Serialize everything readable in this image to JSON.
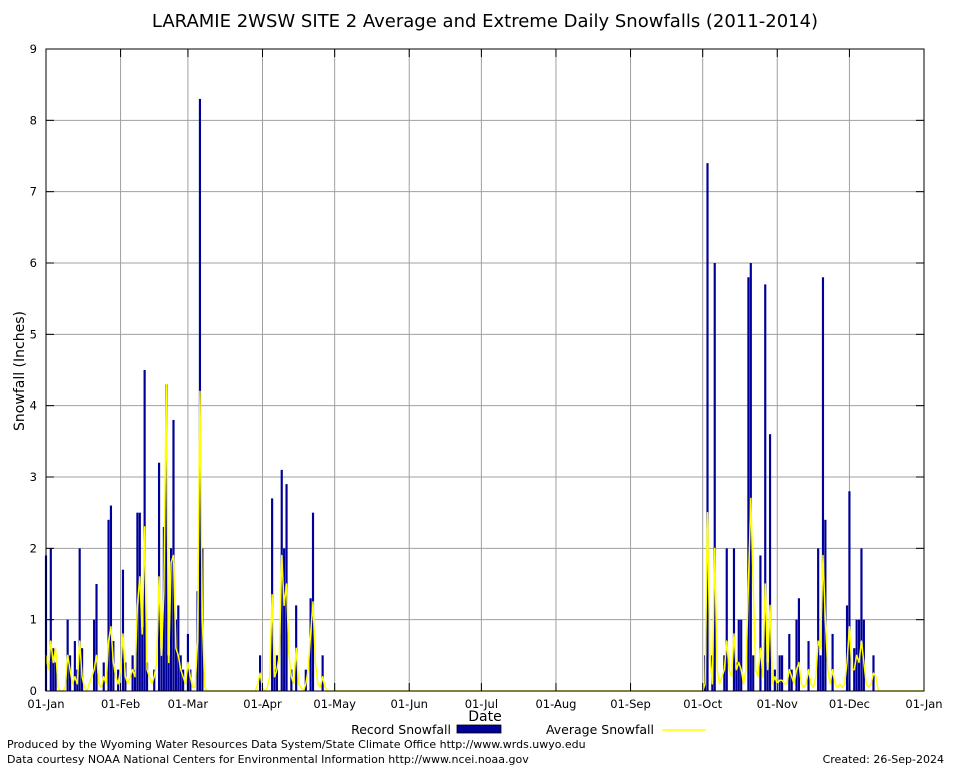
{
  "chart_data": {
    "type": "bar",
    "title": "LARAMIE 2WSW SITE 2 Average and Extreme Daily Snowfalls (2011-2014)",
    "xlabel": "Date",
    "ylabel": "Snowfall (Inches)",
    "ylim": [
      0,
      9
    ],
    "y_ticks": [
      "0",
      "1",
      "2",
      "3",
      "4",
      "5",
      "6",
      "7",
      "8",
      "9"
    ],
    "x_tick_labels": [
      "01-Jan",
      "01-Feb",
      "01-Mar",
      "01-Apr",
      "01-May",
      "01-Jun",
      "01-Jul",
      "01-Aug",
      "01-Sep",
      "01-Oct",
      "01-Nov",
      "01-Dec",
      "01-Jan"
    ],
    "x_tick_days": [
      1,
      32,
      60,
      91,
      121,
      152,
      182,
      213,
      244,
      274,
      305,
      335,
      366
    ],
    "grid": true,
    "legend_placement": "bottom",
    "series": [
      {
        "name": "Record Snowfall",
        "kind": "bar",
        "color": "#000099",
        "points": [
          [
            1,
            1.9
          ],
          [
            3,
            2.0
          ],
          [
            4,
            0.6
          ],
          [
            5,
            0.4
          ],
          [
            10,
            1.0
          ],
          [
            11,
            0.5
          ],
          [
            13,
            0.7
          ],
          [
            14,
            0.3
          ],
          [
            15,
            2.0
          ],
          [
            16,
            0.6
          ],
          [
            21,
            1.0
          ],
          [
            22,
            1.5
          ],
          [
            25,
            0.4
          ],
          [
            27,
            2.4
          ],
          [
            28,
            2.6
          ],
          [
            29,
            0.7
          ],
          [
            31,
            0.3
          ],
          [
            33,
            1.7
          ],
          [
            34,
            0.4
          ],
          [
            37,
            0.5
          ],
          [
            38,
            0.3
          ],
          [
            39,
            2.5
          ],
          [
            40,
            2.5
          ],
          [
            41,
            0.9
          ],
          [
            42,
            4.5
          ],
          [
            43,
            0.4
          ],
          [
            46,
            0.3
          ],
          [
            48,
            3.2
          ],
          [
            49,
            0.6
          ],
          [
            50,
            2.3
          ],
          [
            51,
            4.3
          ],
          [
            52,
            0.5
          ],
          [
            53,
            2.0
          ],
          [
            54,
            3.8
          ],
          [
            55,
            1.0
          ],
          [
            56,
            1.2
          ],
          [
            57,
            0.5
          ],
          [
            58,
            0.3
          ],
          [
            60,
            0.8
          ],
          [
            61,
            0.3
          ],
          [
            64,
            1.4
          ],
          [
            65,
            8.3
          ],
          [
            66,
            2.0
          ],
          [
            90,
            0.5
          ],
          [
            95,
            2.7
          ],
          [
            96,
            0.3
          ],
          [
            97,
            0.5
          ],
          [
            99,
            3.1
          ],
          [
            100,
            2.0
          ],
          [
            101,
            2.9
          ],
          [
            103,
            0.3
          ],
          [
            105,
            1.2
          ],
          [
            109,
            0.3
          ],
          [
            111,
            1.3
          ],
          [
            112,
            2.5
          ],
          [
            116,
            0.5
          ],
          [
            275,
            0.5
          ],
          [
            276,
            7.4
          ],
          [
            278,
            0.5
          ],
          [
            279,
            6.0
          ],
          [
            283,
            0.5
          ],
          [
            284,
            2.0
          ],
          [
            287,
            2.0
          ],
          [
            288,
            0.4
          ],
          [
            289,
            1.0
          ],
          [
            290,
            1.0
          ],
          [
            293,
            5.8
          ],
          [
            294,
            6.0
          ],
          [
            295,
            0.5
          ],
          [
            298,
            1.9
          ],
          [
            300,
            5.7
          ],
          [
            301,
            0.4
          ],
          [
            302,
            3.6
          ],
          [
            304,
            0.3
          ],
          [
            306,
            0.5
          ],
          [
            307,
            0.5
          ],
          [
            310,
            0.8
          ],
          [
            311,
            0.3
          ],
          [
            313,
            1.0
          ],
          [
            314,
            1.3
          ],
          [
            318,
            0.7
          ],
          [
            322,
            2.0
          ],
          [
            323,
            0.5
          ],
          [
            324,
            5.8
          ],
          [
            325,
            2.4
          ],
          [
            328,
            0.8
          ],
          [
            334,
            1.2
          ],
          [
            335,
            2.8
          ],
          [
            337,
            0.6
          ],
          [
            338,
            1.0
          ],
          [
            339,
            1.0
          ],
          [
            340,
            2.0
          ],
          [
            341,
            1.0
          ],
          [
            345,
            0.5
          ]
        ]
      },
      {
        "name": "Average Snowfall",
        "kind": "line",
        "color": "#ffff00",
        "points": [
          [
            1,
            0.5
          ],
          [
            2,
            0.3
          ],
          [
            3,
            0.7
          ],
          [
            4,
            0.4
          ],
          [
            5,
            0.6
          ],
          [
            6,
            0.05
          ],
          [
            7,
            0
          ],
          [
            9,
            0.05
          ],
          [
            10,
            0.5
          ],
          [
            11,
            0.3
          ],
          [
            12,
            0.1
          ],
          [
            13,
            0.2
          ],
          [
            14,
            0.1
          ],
          [
            15,
            0.7
          ],
          [
            16,
            0.2
          ],
          [
            17,
            0.05
          ],
          [
            18,
            0
          ],
          [
            19,
            0.1
          ],
          [
            20,
            0.2
          ],
          [
            21,
            0.3
          ],
          [
            22,
            0.5
          ],
          [
            23,
            0.1
          ],
          [
            24,
            0.05
          ],
          [
            25,
            0.2
          ],
          [
            26,
            0.1
          ],
          [
            27,
            0.7
          ],
          [
            28,
            0.9
          ],
          [
            29,
            0.4
          ],
          [
            30,
            0.2
          ],
          [
            31,
            0.1
          ],
          [
            32,
            0.3
          ],
          [
            33,
            0.8
          ],
          [
            34,
            0.2
          ],
          [
            35,
            0.1
          ],
          [
            36,
            0.2
          ],
          [
            37,
            0.3
          ],
          [
            38,
            0.2
          ],
          [
            39,
            1.2
          ],
          [
            40,
            1.6
          ],
          [
            41,
            0.8
          ],
          [
            42,
            2.3
          ],
          [
            43,
            0.3
          ],
          [
            44,
            0.2
          ],
          [
            45,
            0.1
          ],
          [
            46,
            0.2
          ],
          [
            47,
            0.4
          ],
          [
            48,
            1.6
          ],
          [
            49,
            0.5
          ],
          [
            50,
            1.4
          ],
          [
            51,
            4.3
          ],
          [
            52,
            0.4
          ],
          [
            53,
            1.8
          ],
          [
            54,
            1.9
          ],
          [
            55,
            0.6
          ],
          [
            56,
            0.5
          ],
          [
            57,
            0.3
          ],
          [
            58,
            0.2
          ],
          [
            59,
            0.1
          ],
          [
            60,
            0.4
          ],
          [
            61,
            0.2
          ],
          [
            62,
            0.05
          ],
          [
            63,
            0.05
          ],
          [
            64,
            0.7
          ],
          [
            65,
            4.2
          ],
          [
            66,
            1.0
          ],
          [
            67,
            0.05
          ],
          [
            68,
            0
          ],
          [
            88,
            0
          ],
          [
            89,
            0.1
          ],
          [
            90,
            0.25
          ],
          [
            91,
            0.05
          ],
          [
            93,
            0.05
          ],
          [
            94,
            0.2
          ],
          [
            95,
            1.35
          ],
          [
            96,
            0.2
          ],
          [
            97,
            0.3
          ],
          [
            98,
            0.5
          ],
          [
            99,
            1.9
          ],
          [
            100,
            1.2
          ],
          [
            101,
            1.5
          ],
          [
            102,
            0.5
          ],
          [
            103,
            0.2
          ],
          [
            104,
            0.1
          ],
          [
            105,
            0.6
          ],
          [
            106,
            0.1
          ],
          [
            107,
            0.05
          ],
          [
            109,
            0.1
          ],
          [
            110,
            0.3
          ],
          [
            111,
            0.8
          ],
          [
            112,
            1.25
          ],
          [
            113,
            0.4
          ],
          [
            114,
            0.1
          ],
          [
            115,
            0.05
          ],
          [
            116,
            0.2
          ],
          [
            117,
            0.05
          ],
          [
            118,
            0
          ],
          [
            274,
            0
          ],
          [
            275,
            0.1
          ],
          [
            276,
            2.5
          ],
          [
            277,
            0.5
          ],
          [
            278,
            0.1
          ],
          [
            279,
            2.0
          ],
          [
            280,
            0.3
          ],
          [
            281,
            0.1
          ],
          [
            282,
            0.2
          ],
          [
            283,
            0.3
          ],
          [
            284,
            0.7
          ],
          [
            285,
            0.3
          ],
          [
            286,
            0.2
          ],
          [
            287,
            0.8
          ],
          [
            288,
            0.3
          ],
          [
            289,
            0.4
          ],
          [
            290,
            0.3
          ],
          [
            291,
            0.1
          ],
          [
            292,
            0.3
          ],
          [
            293,
            1.5
          ],
          [
            294,
            2.7
          ],
          [
            295,
            1.5
          ],
          [
            296,
            0.3
          ],
          [
            297,
            0.2
          ],
          [
            298,
            0.6
          ],
          [
            299,
            0.2
          ],
          [
            300,
            1.5
          ],
          [
            301,
            0.3
          ],
          [
            302,
            1.2
          ],
          [
            303,
            0.1
          ],
          [
            304,
            0.2
          ],
          [
            305,
            0.1
          ],
          [
            306,
            0.15
          ],
          [
            307,
            0.15
          ],
          [
            308,
            0.1
          ],
          [
            309,
            0.1
          ],
          [
            310,
            0.3
          ],
          [
            311,
            0.2
          ],
          [
            312,
            0.1
          ],
          [
            313,
            0.3
          ],
          [
            314,
            0.4
          ],
          [
            315,
            0.1
          ],
          [
            316,
            0.05
          ],
          [
            317,
            0.1
          ],
          [
            318,
            0.3
          ],
          [
            319,
            0.1
          ],
          [
            320,
            0.05
          ],
          [
            321,
            0.2
          ],
          [
            322,
            0.7
          ],
          [
            323,
            0.6
          ],
          [
            324,
            1.9
          ],
          [
            325,
            1.0
          ],
          [
            326,
            0.3
          ],
          [
            327,
            0.1
          ],
          [
            328,
            0.3
          ],
          [
            329,
            0.1
          ],
          [
            330,
            0.05
          ],
          [
            331,
            0.1
          ],
          [
            332,
            0.05
          ],
          [
            333,
            0.1
          ],
          [
            334,
            0.4
          ],
          [
            335,
            0.9
          ],
          [
            336,
            0.3
          ],
          [
            337,
            0.3
          ],
          [
            338,
            0.5
          ],
          [
            339,
            0.4
          ],
          [
            340,
            0.7
          ],
          [
            341,
            0.4
          ],
          [
            342,
            0.1
          ],
          [
            343,
            0.05
          ],
          [
            344,
            0.1
          ],
          [
            345,
            0.25
          ],
          [
            346,
            0.2
          ]
        ]
      }
    ]
  },
  "footer": {
    "produced_by": "Produced by the Wyoming Water Resources Data System/State Climate Office http://www.wrds.uwyo.edu",
    "data_courtesy": "Data courtesy NOAA National Centers for Environmental Information http://www.ncei.noaa.gov",
    "created": "Created:  26-Sep-2024"
  }
}
